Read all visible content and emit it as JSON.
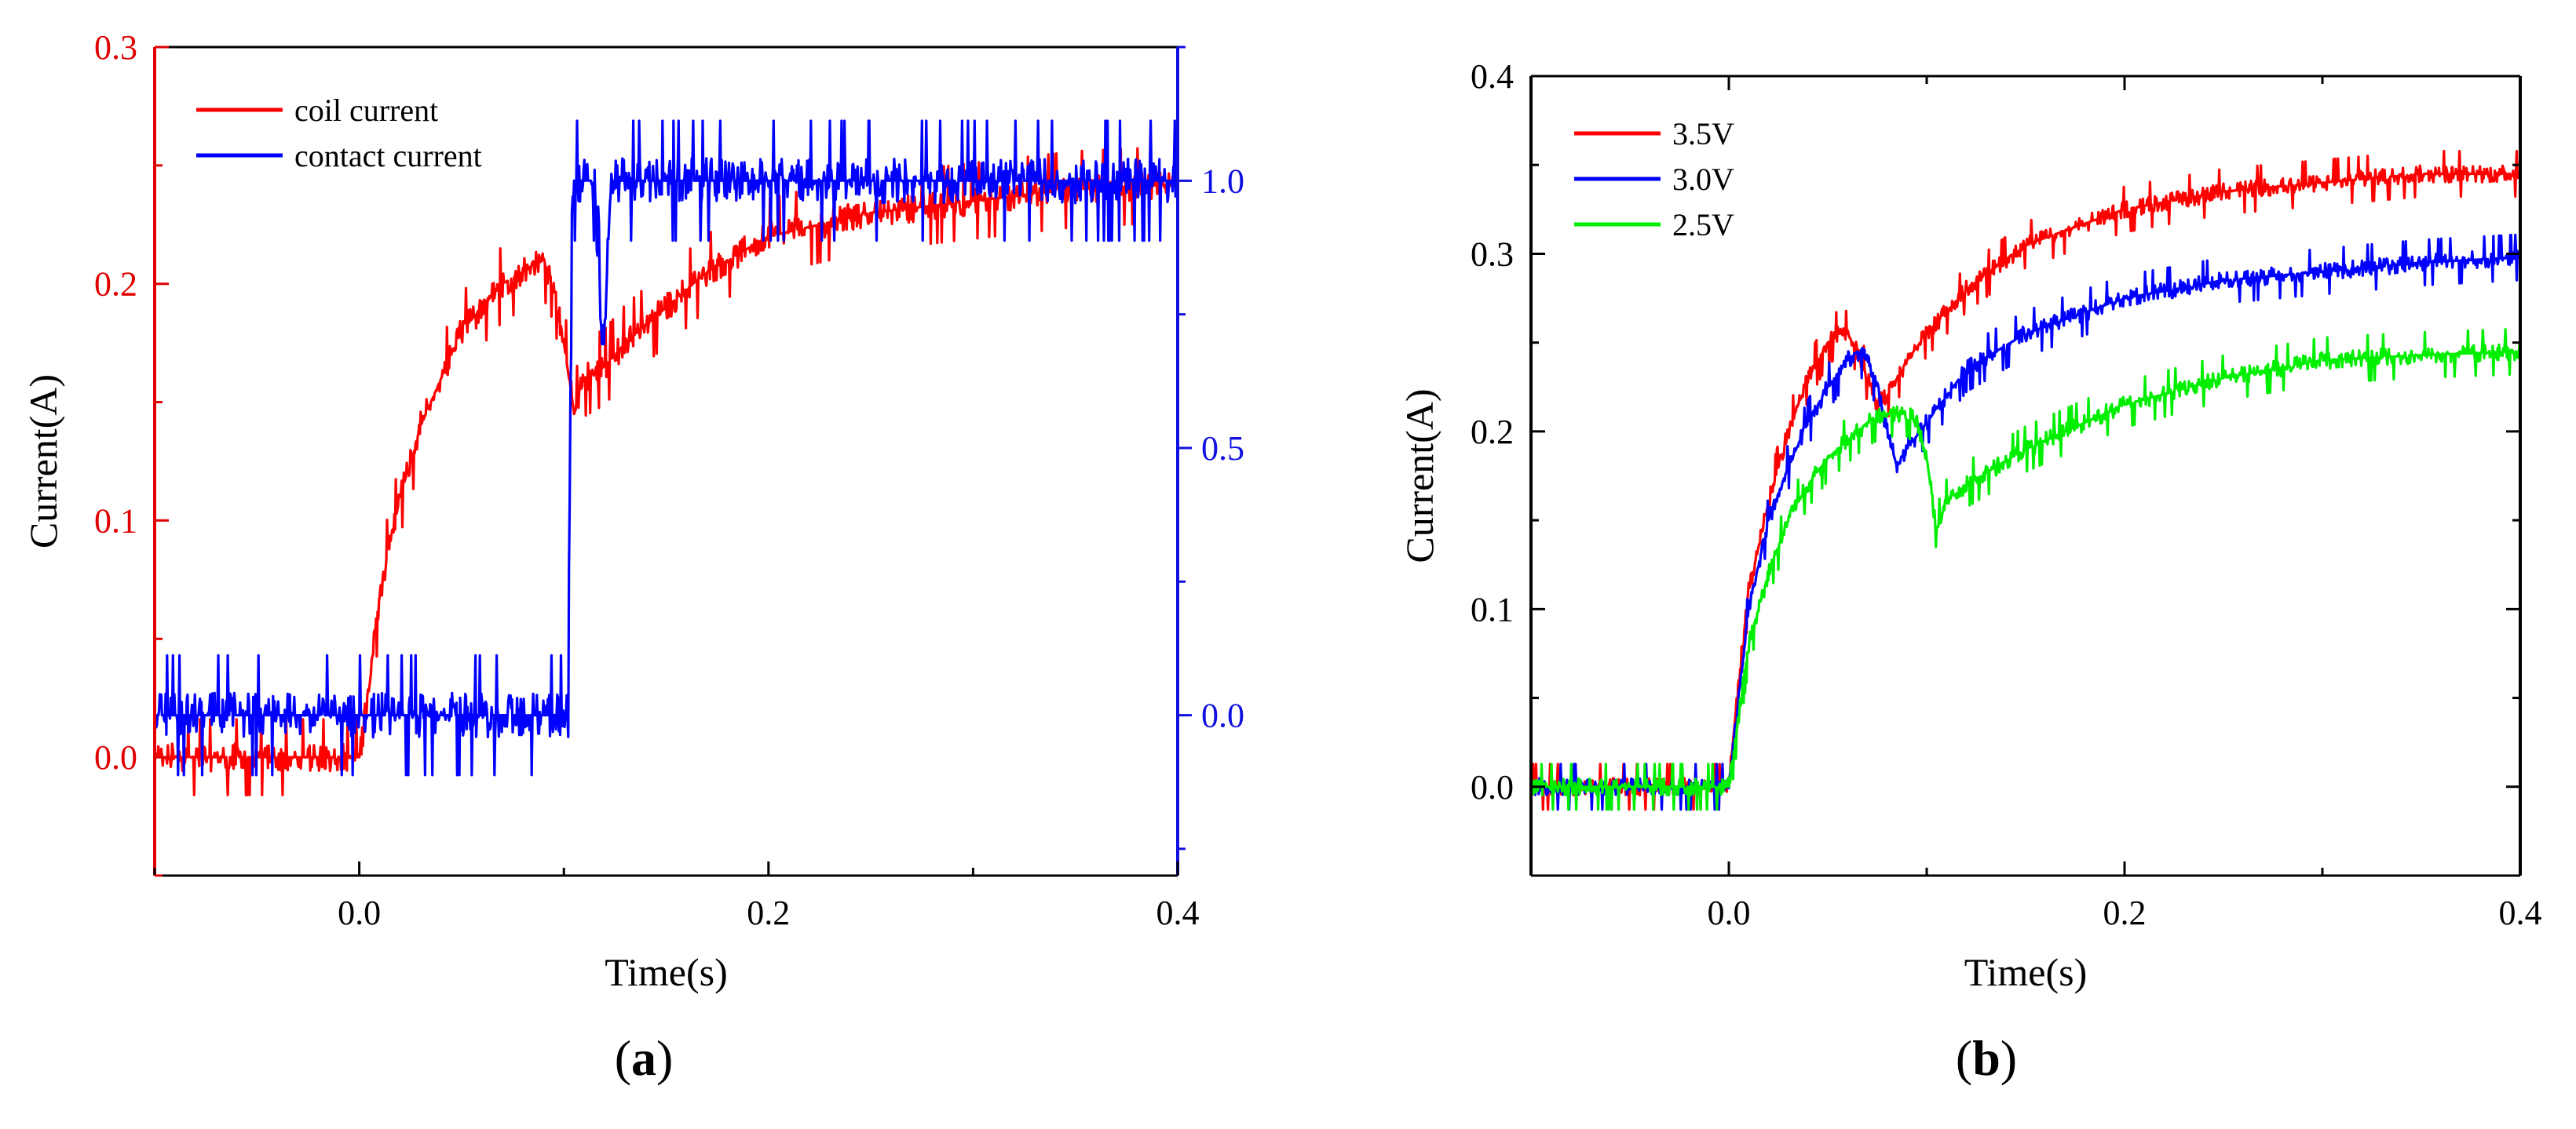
{
  "chart_data": [
    {
      "panel_label": "a",
      "type": "line",
      "title": "",
      "xlabel": "Time(s)",
      "ylabel": "Current(A)",
      "xlim": [
        -0.1,
        0.4
      ],
      "ylim": [
        -0.05,
        0.3
      ],
      "y2lim": [
        -0.3,
        1.25
      ],
      "x_ticks": [
        {
          "value": 0.0,
          "label": "0.0"
        },
        {
          "value": 0.2,
          "label": "0.2"
        },
        {
          "value": 0.4,
          "label": "0.4"
        }
      ],
      "y_ticks": [
        {
          "value": 0.0,
          "label": "0.0"
        },
        {
          "value": 0.1,
          "label": "0.1"
        },
        {
          "value": 0.2,
          "label": "0.2"
        },
        {
          "value": 0.3,
          "label": "0.3"
        }
      ],
      "y2_ticks": [
        {
          "value": 0.0,
          "label": "0.0"
        },
        {
          "value": 0.5,
          "label": "0.5"
        },
        {
          "value": 1.0,
          "label": "1.0"
        }
      ],
      "left_axis_color": "#e00000",
      "right_axis_color": "#1010e0",
      "legend_position": "top-left",
      "series": [
        {
          "name": "coil current",
          "color": "#ff0000",
          "axis": "left",
          "noise": 0.01,
          "x": [
            -0.1,
            0.0,
            0.005,
            0.01,
            0.02,
            0.03,
            0.04,
            0.05,
            0.06,
            0.07,
            0.08,
            0.09,
            0.095,
            0.1,
            0.105,
            0.11,
            0.12,
            0.13,
            0.15,
            0.17,
            0.2,
            0.25,
            0.3,
            0.35,
            0.4
          ],
          "values": [
            0.0,
            0.0,
            0.03,
            0.07,
            0.11,
            0.14,
            0.16,
            0.18,
            0.19,
            0.2,
            0.205,
            0.21,
            0.2,
            0.175,
            0.145,
            0.16,
            0.165,
            0.175,
            0.19,
            0.205,
            0.22,
            0.23,
            0.235,
            0.24,
            0.242
          ]
        },
        {
          "name": "contact current",
          "color": "#0000ff",
          "axis": "right",
          "noise": 0.07,
          "x": [
            -0.1,
            0.102,
            0.104,
            0.115,
            0.118,
            0.12,
            0.123,
            0.4
          ],
          "values": [
            0.0,
            0.0,
            1.0,
            1.0,
            0.73,
            0.73,
            1.0,
            1.0
          ]
        }
      ]
    },
    {
      "panel_label": "b",
      "type": "line",
      "title": "",
      "xlabel": "Time(s)",
      "ylabel": "Current(A)",
      "xlim": [
        -0.1,
        0.4
      ],
      "ylim": [
        -0.05,
        0.4
      ],
      "x_ticks": [
        {
          "value": 0.0,
          "label": "0.0"
        },
        {
          "value": 0.2,
          "label": "0.2"
        },
        {
          "value": 0.4,
          "label": "0.4"
        }
      ],
      "y_ticks": [
        {
          "value": 0.0,
          "label": "0.0"
        },
        {
          "value": 0.1,
          "label": "0.1"
        },
        {
          "value": 0.2,
          "label": "0.2"
        },
        {
          "value": 0.3,
          "label": "0.3"
        },
        {
          "value": 0.4,
          "label": "0.4"
        }
      ],
      "legend_position": "top-left",
      "series": [
        {
          "name": "3.5V",
          "color": "#ff0000",
          "noise": 0.008,
          "x": [
            -0.1,
            0.0,
            0.005,
            0.01,
            0.02,
            0.03,
            0.04,
            0.05,
            0.055,
            0.06,
            0.065,
            0.07,
            0.075,
            0.08,
            0.09,
            0.1,
            0.12,
            0.15,
            0.2,
            0.25,
            0.3,
            0.35,
            0.4
          ],
          "values": [
            0.0,
            0.0,
            0.06,
            0.11,
            0.16,
            0.2,
            0.23,
            0.25,
            0.255,
            0.255,
            0.245,
            0.23,
            0.215,
            0.22,
            0.24,
            0.255,
            0.28,
            0.305,
            0.325,
            0.335,
            0.34,
            0.345,
            0.345
          ]
        },
        {
          "name": "3.0V",
          "color": "#0000ff",
          "noise": 0.008,
          "x": [
            -0.1,
            0.0,
            0.005,
            0.01,
            0.02,
            0.03,
            0.04,
            0.05,
            0.06,
            0.065,
            0.07,
            0.075,
            0.08,
            0.085,
            0.09,
            0.1,
            0.12,
            0.15,
            0.2,
            0.25,
            0.3,
            0.35,
            0.4
          ],
          "values": [
            0.0,
            0.0,
            0.05,
            0.1,
            0.15,
            0.18,
            0.205,
            0.225,
            0.24,
            0.245,
            0.24,
            0.225,
            0.2,
            0.18,
            0.19,
            0.205,
            0.235,
            0.255,
            0.275,
            0.285,
            0.29,
            0.295,
            0.298
          ]
        },
        {
          "name": "2.5V",
          "color": "#00ee00",
          "noise": 0.008,
          "x": [
            -0.1,
            0.0,
            0.005,
            0.01,
            0.02,
            0.03,
            0.04,
            0.05,
            0.06,
            0.07,
            0.08,
            0.09,
            0.095,
            0.1,
            0.105,
            0.11,
            0.12,
            0.15,
            0.2,
            0.25,
            0.3,
            0.35,
            0.4
          ],
          "values": [
            0.0,
            0.0,
            0.04,
            0.08,
            0.12,
            0.15,
            0.17,
            0.185,
            0.195,
            0.205,
            0.21,
            0.21,
            0.205,
            0.185,
            0.145,
            0.16,
            0.17,
            0.19,
            0.215,
            0.23,
            0.24,
            0.243,
            0.245
          ]
        }
      ]
    }
  ]
}
